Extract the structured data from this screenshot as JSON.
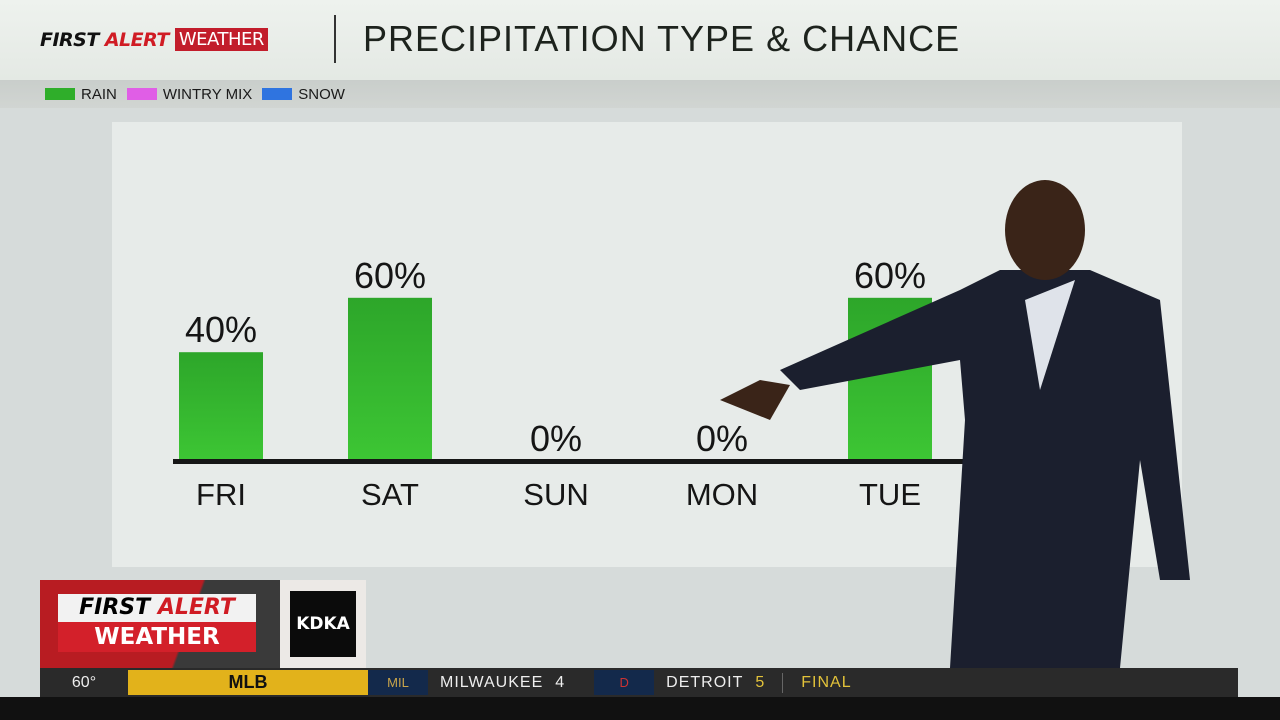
{
  "header": {
    "brand_first": "FIRST",
    "brand_alert": "ALERT",
    "brand_weather": "WEATHER",
    "title": "PRECIPITATION TYPE & CHANCE"
  },
  "legend": [
    {
      "label": "RAIN",
      "color": "#2fae2a"
    },
    {
      "label": "WINTRY MIX",
      "color": "#e05ee6"
    },
    {
      "label": "SNOW",
      "color": "#2f74e0"
    }
  ],
  "chart_data": {
    "type": "bar",
    "title": "PRECIPITATION TYPE & CHANCE",
    "categories": [
      "FRI",
      "SAT",
      "SUN",
      "MON",
      "TUE"
    ],
    "series": [
      {
        "name": "RAIN",
        "values": [
          40,
          60,
          0,
          0,
          60
        ]
      }
    ],
    "labels": [
      "40%",
      "60%",
      "0%",
      "0%",
      "60%"
    ],
    "ylim": [
      0,
      100
    ],
    "unit": "%",
    "grid": false,
    "legend": "top-left"
  },
  "logo": {
    "line1_first": "FIRST",
    "line1_alert": "ALERT",
    "line2": "WEATHER",
    "station": "KDKA"
  },
  "ticker": {
    "temp": "60°",
    "league": "MLB",
    "team1_logo": "MIL",
    "team1": "MILWAUKEE",
    "score1": "4",
    "team2_logo": "D",
    "team2": "DETROIT",
    "score2": "5",
    "status": "FINAL"
  }
}
